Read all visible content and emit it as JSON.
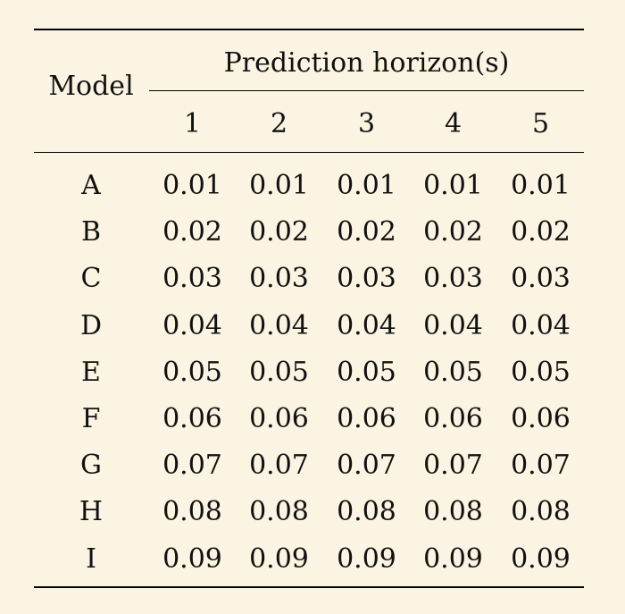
{
  "table": {
    "model_header": "Model",
    "group_header": "Prediction horizon(s)",
    "columns": [
      "1",
      "2",
      "3",
      "4",
      "5"
    ],
    "rows": [
      {
        "model": "A",
        "values": [
          "0.01",
          "0.01",
          "0.01",
          "0.01",
          "0.01"
        ]
      },
      {
        "model": "B",
        "values": [
          "0.02",
          "0.02",
          "0.02",
          "0.02",
          "0.02"
        ]
      },
      {
        "model": "C",
        "values": [
          "0.03",
          "0.03",
          "0.03",
          "0.03",
          "0.03"
        ]
      },
      {
        "model": "D",
        "values": [
          "0.04",
          "0.04",
          "0.04",
          "0.04",
          "0.04"
        ]
      },
      {
        "model": "E",
        "values": [
          "0.05",
          "0.05",
          "0.05",
          "0.05",
          "0.05"
        ]
      },
      {
        "model": "F",
        "values": [
          "0.06",
          "0.06",
          "0.06",
          "0.06",
          "0.06"
        ]
      },
      {
        "model": "G",
        "values": [
          "0.07",
          "0.07",
          "0.07",
          "0.07",
          "0.07"
        ]
      },
      {
        "model": "H",
        "values": [
          "0.08",
          "0.08",
          "0.08",
          "0.08",
          "0.08"
        ]
      },
      {
        "model": "I",
        "values": [
          "0.09",
          "0.09",
          "0.09",
          "0.09",
          "0.09"
        ]
      }
    ]
  },
  "colors": {
    "background": "#fcf4e2",
    "text": "#111111",
    "rules": "#000000"
  }
}
